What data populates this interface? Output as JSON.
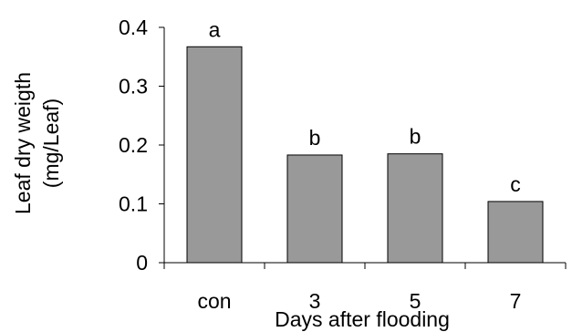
{
  "chart_data": {
    "type": "bar",
    "categories": [
      "con",
      "3",
      "5",
      "7"
    ],
    "values": [
      0.367,
      0.183,
      0.185,
      0.104
    ],
    "significance_letters": [
      "a",
      "b",
      "b",
      "c"
    ],
    "title": "",
    "xlabel": "Days after flooding",
    "ylabel_line1": "Leaf dry weigth",
    "ylabel_line2": "(mg/Leaf)",
    "ylim": [
      0,
      0.4
    ],
    "yticks": [
      0,
      0.1,
      0.2,
      0.3,
      0.4
    ],
    "ytick_labels": [
      "0",
      "0.1",
      "0.2",
      "0.3",
      "0.4"
    ],
    "grid": false,
    "legend": "none",
    "bar_color": "#999999",
    "bar_edge_color": "#000000"
  }
}
